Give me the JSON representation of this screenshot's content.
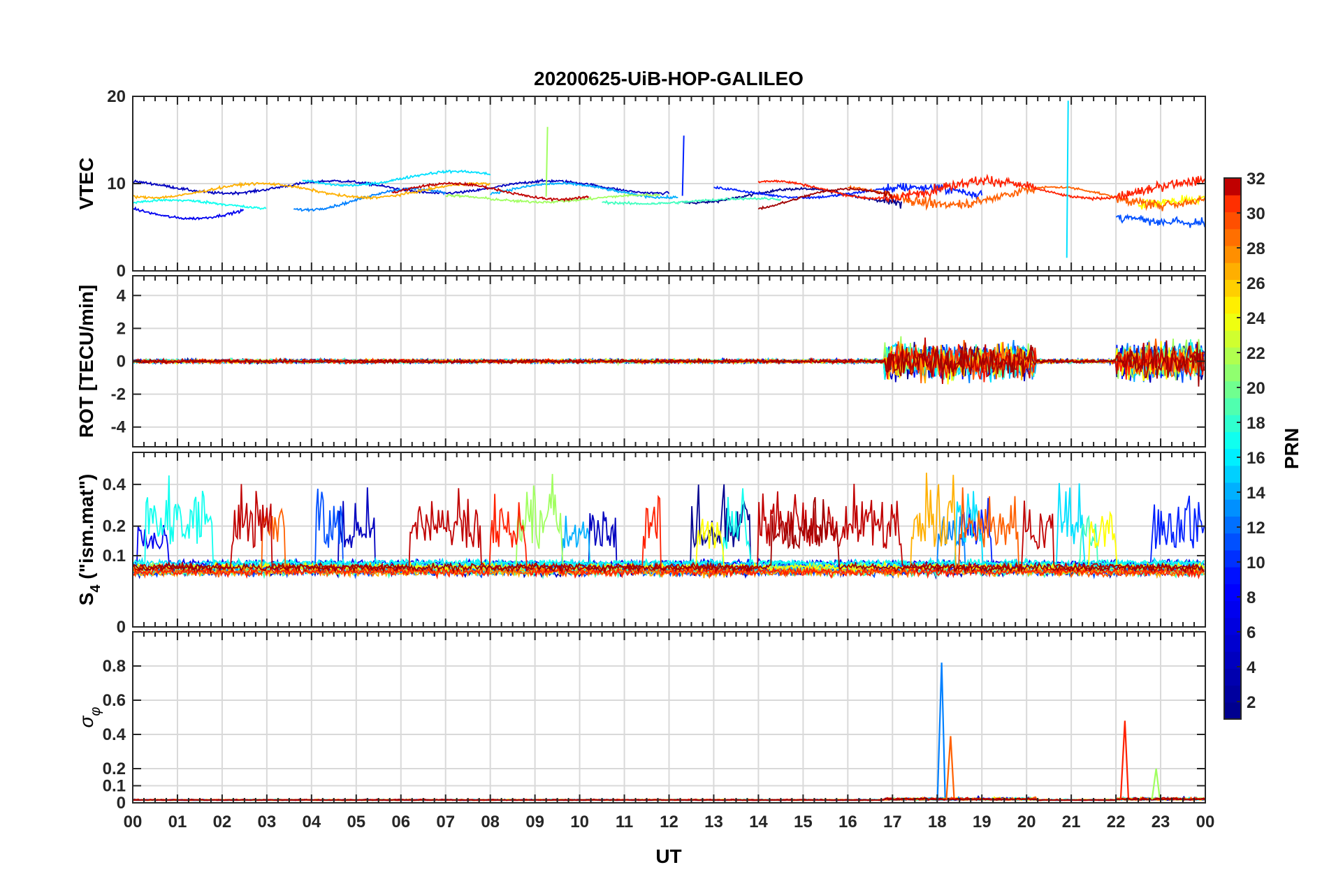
{
  "chart_data": {
    "type": "line",
    "title": "20200625-UiB-HOP-GALILEO",
    "xlabel": "UT",
    "x_ticks": [
      "00",
      "01",
      "02",
      "03",
      "04",
      "05",
      "06",
      "07",
      "08",
      "09",
      "10",
      "11",
      "12",
      "13",
      "14",
      "15",
      "16",
      "17",
      "18",
      "19",
      "20",
      "21",
      "22",
      "23",
      "00"
    ],
    "xlim_hours": [
      0,
      24
    ],
    "grid": true,
    "panels": [
      {
        "name": "vtec",
        "ylabel": "VTEC",
        "ylim": [
          0,
          20
        ],
        "y_ticks": [
          0,
          10,
          20
        ],
        "y_tick_labels": [
          "0",
          "10",
          "20"
        ]
      },
      {
        "name": "rot",
        "ylabel": "ROT [TECU/min]",
        "ylim": [
          -5.2,
          5.2
        ],
        "y_ticks": [
          -4,
          -2,
          0,
          2,
          4
        ],
        "y_tick_labels": [
          "-4",
          "-2",
          "0",
          "2",
          "4"
        ]
      },
      {
        "name": "s4",
        "ylabel_main": "S",
        "ylabel_sub": "4",
        "ylabel_rest": " (\"ism.mat\")",
        "scale": "sqrt",
        "ylim": [
          0,
          0.6
        ],
        "y_ticks": [
          0,
          0.1,
          0.2,
          0.4
        ],
        "y_tick_labels": [
          "0",
          "0.1",
          "0.2",
          "0.4"
        ]
      },
      {
        "name": "sigma-phi",
        "ylabel_main": "σ",
        "ylabel_sub": "φ",
        "ylim": [
          0,
          1.0
        ],
        "y_ticks": [
          0,
          0.1,
          0.2,
          0.4,
          0.6,
          0.8
        ],
        "y_tick_labels": [
          "0",
          "0.1",
          "0.2",
          "0.4",
          "0.6",
          "0.8"
        ]
      }
    ],
    "colorbar": {
      "label": "PRN",
      "range": [
        1,
        32
      ],
      "colormap": "jet",
      "ticks": [
        2,
        4,
        6,
        8,
        10,
        12,
        14,
        16,
        18,
        20,
        22,
        24,
        26,
        28,
        30,
        32
      ],
      "tick_labels": [
        "2",
        "4",
        "6",
        "8",
        "10",
        "12",
        "14",
        "16",
        "18",
        "20",
        "22",
        "24",
        "26",
        "28",
        "30",
        "32"
      ]
    },
    "series": [
      {
        "prn": 1,
        "color": "#00008f",
        "vtec_base": 8.6,
        "vtec_amp": 0.8,
        "start_h": 12.3,
        "end_h": 17.2,
        "s4_base": 0.07,
        "active_h": [
          [
            12.5,
            13.8
          ]
        ],
        "s4_peak": 0.45
      },
      {
        "prn": 2,
        "color": "#0000bf",
        "vtec_base": 9.6,
        "vtec_amp": 0.7,
        "start_h": 0.0,
        "end_h": 12.0,
        "s4_base": 0.06,
        "active_h": [
          [
            4.6,
            5.4
          ],
          [
            10.2,
            10.8
          ]
        ],
        "s4_peak": 0.42
      },
      {
        "prn": 3,
        "color": "#0000ef",
        "vtec_base": 7.0,
        "vtec_amp": 1.0,
        "start_h": 0.0,
        "end_h": 2.5,
        "s4_base": 0.08,
        "active_h": [
          [
            0.1,
            0.8
          ]
        ],
        "s4_peak": 0.25
      },
      {
        "prn": 4,
        "color": "#0020ff",
        "vtec_base": 9.0,
        "vtec_amp": 0.6,
        "start_h": 13.0,
        "end_h": 19.0,
        "s4_base": 0.07,
        "active_h": [
          [
            18.5,
            19.2
          ],
          [
            22.8,
            24.0
          ]
        ],
        "s4_peak": 0.42
      },
      {
        "prn": 5,
        "color": "#0050ff",
        "vtec_base": 5.8,
        "vtec_amp": 0.3,
        "start_h": 22.0,
        "end_h": 24.0,
        "s4_base": 0.06,
        "active_h": [
          [
            4.1,
            4.7
          ]
        ],
        "s4_peak": 0.58
      },
      {
        "prn": 6,
        "color": "#0080ff",
        "vtec_base": 8.2,
        "vtec_amp": 1.2,
        "start_h": 3.6,
        "end_h": 7.0,
        "s4_base": 0.07,
        "active_h": [
          [
            18.0,
            18.6
          ]
        ],
        "s4_peak": 0.35
      },
      {
        "prn": 8,
        "color": "#00b0ff",
        "vtec_base": 9.2,
        "vtec_amp": 0.8,
        "start_h": 8.0,
        "end_h": 12.2,
        "s4_base": 0.07,
        "active_h": [
          [
            9.6,
            10.2
          ]
        ],
        "s4_peak": 0.3
      },
      {
        "prn": 11,
        "color": "#00e0ff",
        "vtec_base": 10.6,
        "vtec_amp": 0.8,
        "start_h": 3.8,
        "end_h": 8.0,
        "s4_base": 0.08,
        "active_h": [
          [
            18.4,
            19.0
          ],
          [
            20.7,
            21.3
          ]
        ],
        "s4_peak": 0.5
      },
      {
        "prn": 13,
        "color": "#10ffef",
        "vtec_base": 7.6,
        "vtec_amp": 0.5,
        "start_h": 0.0,
        "end_h": 3.0,
        "s4_base": 0.08,
        "active_h": [
          [
            0.3,
            1.8
          ],
          [
            13.2,
            13.8
          ]
        ],
        "s4_peak": 0.52
      },
      {
        "prn": 15,
        "color": "#40ffbf",
        "vtec_base": 8.0,
        "vtec_amp": 0.3,
        "start_h": 10.5,
        "end_h": 14.5,
        "s4_base": 0.06,
        "active_h": [
          [
            21.2,
            21.6
          ]
        ],
        "s4_peak": 0.3
      },
      {
        "prn": 18,
        "color": "#a0ff5f",
        "vtec_base": 8.3,
        "vtec_amp": 0.4,
        "start_h": 7.0,
        "end_h": 11.8,
        "s4_base": 0.07,
        "active_h": [
          [
            8.6,
            9.6
          ]
        ],
        "s4_peak": 0.55
      },
      {
        "prn": 20,
        "color": "#ffff00",
        "vtec_base": 8.0,
        "vtec_amp": 0.4,
        "start_h": 22.5,
        "end_h": 24.0,
        "s4_base": 0.07,
        "active_h": [
          [
            12.6,
            13.2
          ],
          [
            21.4,
            22.0
          ]
        ],
        "s4_peak": 0.35
      },
      {
        "prn": 23,
        "color": "#ffb000",
        "vtec_base": 9.2,
        "vtec_amp": 0.8,
        "start_h": 0.0,
        "end_h": 8.0,
        "s4_base": 0.06,
        "active_h": [
          [
            17.4,
            18.4
          ]
        ],
        "s4_peak": 0.6
      },
      {
        "prn": 25,
        "color": "#ff6000",
        "vtec_base": 8.6,
        "vtec_amp": 1.0,
        "start_h": 16.0,
        "end_h": 24.0,
        "s4_base": 0.06,
        "active_h": [
          [
            18.5,
            19.8
          ],
          [
            2.9,
            3.4
          ]
        ],
        "s4_peak": 0.42
      },
      {
        "prn": 27,
        "color": "#ff2000",
        "vtec_base": 9.3,
        "vtec_amp": 1.0,
        "start_h": 14.0,
        "end_h": 24.0,
        "s4_base": 0.06,
        "active_h": [
          [
            8.0,
            8.8
          ],
          [
            11.4,
            11.8
          ]
        ],
        "s4_peak": 0.45
      },
      {
        "prn": 30,
        "color": "#c00000",
        "vtec_base": 9.1,
        "vtec_amp": 0.9,
        "start_h": 5.8,
        "end_h": 10.2,
        "s4_base": 0.07,
        "active_h": [
          [
            2.2,
            3.1
          ],
          [
            6.2,
            7.8
          ],
          [
            14.0,
            17.2
          ],
          [
            19.9,
            20.6
          ]
        ],
        "s4_peak": 0.45
      },
      {
        "prn": 31,
        "color": "#a00000",
        "vtec_base": 8.2,
        "vtec_amp": 1.2,
        "start_h": 14.0,
        "end_h": 17.0,
        "s4_base": 0.07,
        "active_h": [
          [
            14.3,
            15.8
          ]
        ],
        "s4_peak": 0.38
      }
    ],
    "annotations": {
      "vtec_spikes": [
        {
          "prn": 18,
          "x_h": 9.25,
          "from": 8.5,
          "to": 16.5
        },
        {
          "prn": 4,
          "x_h": 12.3,
          "from": 8.6,
          "to": 15.5
        },
        {
          "prn": 11,
          "x_h": 20.9,
          "from": 1.5,
          "to": 19.5
        }
      ],
      "rot_disturbed_h": [
        [
          16.8,
          20.2
        ],
        [
          22.0,
          24.0
        ]
      ],
      "sigma_phi_spikes": [
        {
          "prn": 6,
          "x_h": 18.1,
          "peak": 0.82
        },
        {
          "prn": 25,
          "x_h": 18.3,
          "peak": 0.39
        },
        {
          "prn": 27,
          "x_h": 22.2,
          "peak": 0.48
        },
        {
          "prn": 18,
          "x_h": 22.9,
          "peak": 0.2
        }
      ]
    }
  }
}
